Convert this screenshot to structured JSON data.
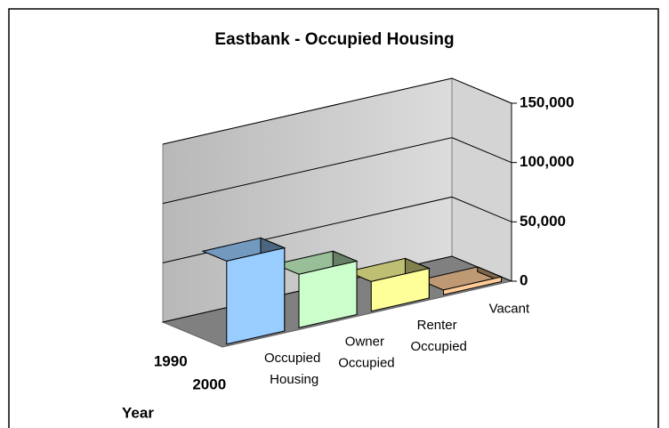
{
  "chart_data": {
    "type": "bar3d",
    "title": "Eastbank - Occupied Housing",
    "categories": [
      "Occupied Housing",
      "Owner Occupied",
      "Renter Occupied",
      "Vacant"
    ],
    "depth_categories": [
      "1990",
      "2000"
    ],
    "depth_axis_label": "Year",
    "series": [
      {
        "name": "1990",
        "colors": [
          "#99ccff",
          "#ccffcc",
          "#ffff99",
          "#ffcc99"
        ],
        "values": [
          null,
          null,
          null,
          null
        ]
      },
      {
        "name": "2000",
        "colors": [
          "#99ccff",
          "#ccffcc",
          "#ffff99",
          "#ffcc99"
        ],
        "values": [
          70000,
          45000,
          25000,
          4000
        ]
      }
    ],
    "ylim": [
      0,
      150000
    ],
    "yticks": [
      {
        "value": 0,
        "label": "0"
      },
      {
        "value": 50000,
        "label": "50,000"
      },
      {
        "value": 100000,
        "label": "100,000"
      },
      {
        "value": 150000,
        "label": "150,000"
      }
    ],
    "grid": true
  }
}
